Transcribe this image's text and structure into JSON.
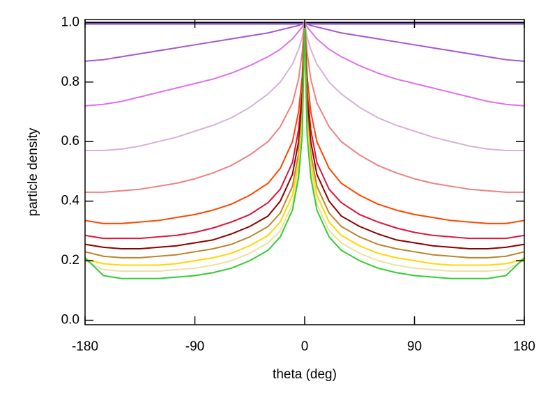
{
  "chart_data": {
    "type": "line",
    "x_label": "theta (deg)",
    "y_label": "particle density",
    "x": [
      -180,
      -165,
      -150,
      -135,
      -120,
      -105,
      -90,
      -75,
      -60,
      -45,
      -30,
      -20,
      -10,
      -5,
      -2,
      0,
      2,
      5,
      10,
      20,
      30,
      45,
      60,
      75,
      90,
      105,
      120,
      135,
      150,
      165,
      180
    ],
    "xlim": [
      -180,
      180
    ],
    "xticks": [
      -180,
      -90,
      0,
      90,
      180
    ],
    "ylim": [
      -0.015,
      1.01
    ],
    "yticks": [
      {
        "value": 0,
        "label": "0.0"
      },
      0.2,
      0.4,
      0.6,
      0.8,
      {
        "value": 1,
        "label": "1.0"
      }
    ],
    "series": [
      {
        "color": "#000000",
        "values": [
          1.0,
          1.0,
          1.0,
          1.0,
          1.0,
          1.0,
          1.0,
          1.0,
          1.0,
          1.0,
          1.0,
          1.0,
          1.0,
          1.0,
          1.0,
          1.0,
          1.0,
          1.0,
          1.0,
          1.0,
          1.0,
          1.0,
          1.0,
          1.0,
          1.0,
          1.0,
          1.0,
          1.0,
          1.0,
          1.0,
          1.0
        ]
      },
      {
        "color": "#7a3fd0",
        "values": [
          0.995,
          0.995,
          0.995,
          0.995,
          0.995,
          0.995,
          0.995,
          0.995,
          0.995,
          0.995,
          0.995,
          0.995,
          0.995,
          0.995,
          0.995,
          1.0,
          0.995,
          0.995,
          0.995,
          0.995,
          0.995,
          0.995,
          0.995,
          0.995,
          0.995,
          0.995,
          0.995,
          0.995,
          0.995,
          0.995,
          0.995
        ]
      },
      {
        "color": "#a855d0",
        "values": [
          0.87,
          0.875,
          0.885,
          0.895,
          0.905,
          0.915,
          0.925,
          0.935,
          0.945,
          0.955,
          0.965,
          0.975,
          0.985,
          0.99,
          0.995,
          1.0,
          0.995,
          0.99,
          0.985,
          0.975,
          0.965,
          0.955,
          0.945,
          0.935,
          0.925,
          0.915,
          0.905,
          0.895,
          0.885,
          0.875,
          0.87
        ]
      },
      {
        "color": "#e070e8",
        "values": [
          0.72,
          0.725,
          0.735,
          0.75,
          0.765,
          0.78,
          0.795,
          0.81,
          0.83,
          0.855,
          0.885,
          0.91,
          0.945,
          0.97,
          0.985,
          1.0,
          0.985,
          0.97,
          0.945,
          0.91,
          0.885,
          0.855,
          0.83,
          0.81,
          0.795,
          0.78,
          0.765,
          0.75,
          0.735,
          0.725,
          0.72
        ]
      },
      {
        "color": "#d8b0d8",
        "values": [
          0.57,
          0.57,
          0.575,
          0.585,
          0.6,
          0.615,
          0.635,
          0.655,
          0.68,
          0.715,
          0.76,
          0.8,
          0.86,
          0.91,
          0.95,
          1.0,
          0.95,
          0.91,
          0.86,
          0.8,
          0.76,
          0.715,
          0.68,
          0.655,
          0.635,
          0.615,
          0.6,
          0.585,
          0.575,
          0.57,
          0.57
        ]
      },
      {
        "color": "#f08080",
        "values": [
          0.43,
          0.43,
          0.435,
          0.44,
          0.45,
          0.46,
          0.475,
          0.495,
          0.52,
          0.555,
          0.6,
          0.65,
          0.73,
          0.81,
          0.9,
          1.0,
          0.9,
          0.81,
          0.73,
          0.65,
          0.6,
          0.555,
          0.52,
          0.495,
          0.475,
          0.46,
          0.45,
          0.44,
          0.435,
          0.43,
          0.43
        ]
      },
      {
        "color": "#ff4500",
        "values": [
          0.335,
          0.325,
          0.325,
          0.33,
          0.335,
          0.345,
          0.355,
          0.37,
          0.39,
          0.42,
          0.46,
          0.51,
          0.6,
          0.7,
          0.82,
          1.0,
          0.82,
          0.7,
          0.6,
          0.51,
          0.46,
          0.42,
          0.39,
          0.37,
          0.355,
          0.345,
          0.335,
          0.33,
          0.325,
          0.325,
          0.335
        ]
      },
      {
        "color": "#dc143c",
        "values": [
          0.285,
          0.275,
          0.275,
          0.275,
          0.28,
          0.285,
          0.295,
          0.31,
          0.33,
          0.355,
          0.395,
          0.44,
          0.53,
          0.64,
          0.77,
          0.98,
          0.77,
          0.64,
          0.53,
          0.44,
          0.395,
          0.355,
          0.33,
          0.31,
          0.295,
          0.285,
          0.28,
          0.275,
          0.275,
          0.275,
          0.285
        ]
      },
      {
        "color": "#8b0000",
        "values": [
          0.255,
          0.245,
          0.24,
          0.24,
          0.245,
          0.25,
          0.26,
          0.27,
          0.29,
          0.315,
          0.35,
          0.4,
          0.49,
          0.6,
          0.74,
          0.97,
          0.74,
          0.6,
          0.49,
          0.4,
          0.35,
          0.315,
          0.29,
          0.27,
          0.26,
          0.25,
          0.245,
          0.24,
          0.24,
          0.245,
          0.255
        ]
      },
      {
        "color": "#b8862b",
        "values": [
          0.23,
          0.215,
          0.21,
          0.21,
          0.215,
          0.22,
          0.23,
          0.24,
          0.255,
          0.28,
          0.315,
          0.36,
          0.45,
          0.56,
          0.7,
          0.96,
          0.7,
          0.56,
          0.45,
          0.36,
          0.315,
          0.28,
          0.255,
          0.24,
          0.23,
          0.22,
          0.215,
          0.21,
          0.21,
          0.215,
          0.23
        ]
      },
      {
        "color": "#ffd700",
        "values": [
          0.205,
          0.19,
          0.185,
          0.185,
          0.185,
          0.19,
          0.2,
          0.21,
          0.225,
          0.25,
          0.285,
          0.33,
          0.42,
          0.53,
          0.67,
          0.95,
          0.67,
          0.53,
          0.42,
          0.33,
          0.285,
          0.25,
          0.225,
          0.21,
          0.2,
          0.19,
          0.185,
          0.185,
          0.185,
          0.19,
          0.205
        ]
      },
      {
        "color": "#eee0a0",
        "values": [
          0.2,
          0.17,
          0.165,
          0.165,
          0.165,
          0.17,
          0.175,
          0.185,
          0.2,
          0.225,
          0.26,
          0.3,
          0.39,
          0.5,
          0.64,
          0.94,
          0.64,
          0.5,
          0.39,
          0.3,
          0.26,
          0.225,
          0.2,
          0.185,
          0.175,
          0.17,
          0.165,
          0.165,
          0.165,
          0.17,
          0.2
        ]
      },
      {
        "color": "#32cd32",
        "values": [
          0.21,
          0.15,
          0.14,
          0.14,
          0.14,
          0.145,
          0.15,
          0.16,
          0.175,
          0.2,
          0.235,
          0.28,
          0.37,
          0.48,
          0.62,
          1.0,
          0.62,
          0.48,
          0.37,
          0.28,
          0.235,
          0.2,
          0.175,
          0.16,
          0.15,
          0.145,
          0.14,
          0.14,
          0.14,
          0.15,
          0.21
        ]
      }
    ]
  }
}
